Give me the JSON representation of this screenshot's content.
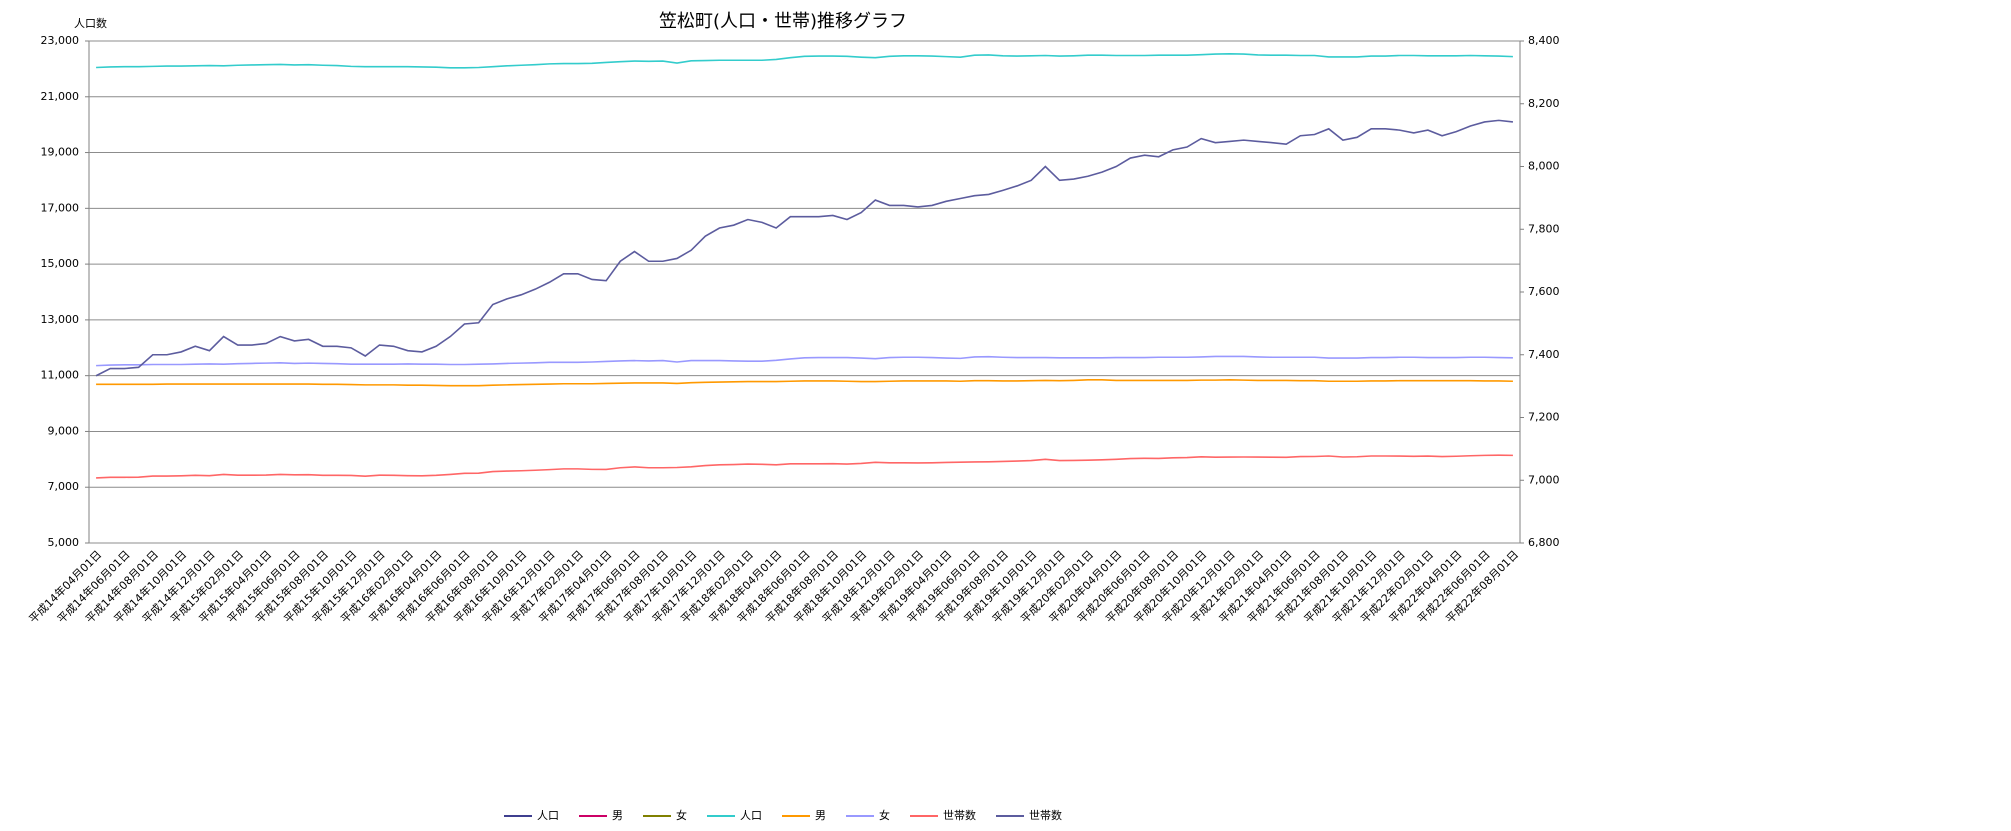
{
  "chart_data": {
    "type": "line",
    "title": "笠松町(人口・世帯)推移グラフ",
    "y_label": "人口数",
    "grid": true,
    "legend": "bottom",
    "ylim": [
      5000,
      23000
    ],
    "yticks": [
      {
        "value": 5000,
        "label": "5,000"
      },
      {
        "value": 7000,
        "label": "7,000"
      },
      {
        "value": 9000,
        "label": "9,000"
      },
      {
        "value": 11000,
        "label": "11,000"
      },
      {
        "value": 13000,
        "label": "13,000"
      },
      {
        "value": 15000,
        "label": "15,000"
      },
      {
        "value": 17000,
        "label": "17,000"
      },
      {
        "value": 19000,
        "label": "19,000"
      },
      {
        "value": 21000,
        "label": "21,000"
      },
      {
        "value": 23000,
        "label": "23,000"
      }
    ],
    "y2lim": [
      6800,
      8400
    ],
    "y2ticks": [
      {
        "value": 6800,
        "label": "6,800"
      },
      {
        "value": 7000,
        "label": "7,000"
      },
      {
        "value": 7200,
        "label": "7,200"
      },
      {
        "value": 7400,
        "label": "7,400"
      },
      {
        "value": 7600,
        "label": "7,600"
      },
      {
        "value": 7800,
        "label": "7,800"
      },
      {
        "value": 8000,
        "label": "8,000"
      },
      {
        "value": 8200,
        "label": "8,200"
      },
      {
        "value": 8400,
        "label": "8,400"
      }
    ],
    "categories": [
      "平成14年04月01日",
      null,
      "平成14年06月01日",
      null,
      "平成14年08月01日",
      null,
      "平成14年10月01日",
      null,
      "平成14年12月01日",
      null,
      "平成15年02月01日",
      null,
      "平成15年04月01日",
      null,
      "平成15年06月01日",
      null,
      "平成15年08月01日",
      null,
      "平成15年10月01日",
      null,
      "平成15年12月01日",
      null,
      "平成16年02月01日",
      null,
      "平成16年04月01日",
      null,
      "平成16年06月01日",
      null,
      "平成16年08月01日",
      null,
      "平成16年10月01日",
      null,
      "平成16年12月01日",
      null,
      "平成17年02月01日",
      null,
      "平成17年04月01日",
      null,
      "平成17年06月01日",
      null,
      "平成17年08月01日",
      null,
      "平成17年10月01日",
      null,
      "平成17年12月01日",
      null,
      "平成18年02月01日",
      null,
      "平成18年04月01日",
      null,
      "平成18年06月01日",
      null,
      "平成18年08月01日",
      null,
      "平成18年10月01日",
      null,
      "平成18年12月01日",
      null,
      "平成19年02月01日",
      null,
      "平成19年04月01日",
      null,
      "平成19年06月01日",
      null,
      "平成19年08月01日",
      null,
      "平成19年10月01日",
      null,
      "平成19年12月01日",
      null,
      "平成20年02月01日",
      null,
      "平成20年04月01日",
      null,
      "平成20年06月01日",
      null,
      "平成20年08月01日",
      null,
      "平成20年10月01日",
      null,
      "平成20年12月01日",
      null,
      "平成21年02月01日",
      null,
      "平成21年04月01日",
      null,
      "平成21年06月01日",
      null,
      "平成21年08月01日",
      null,
      "平成21年10月01日",
      null,
      "平成21年12月01日",
      null,
      "平成22年02月01日",
      null,
      "平成22年04月01日",
      null,
      "平成22年06月01日",
      null,
      "平成22年08月01日"
    ],
    "series": [
      {
        "name": "人口",
        "color": "#3f3f8f",
        "values": [
          null,
          null,
          null,
          null,
          null,
          null,
          null,
          null,
          null,
          null,
          null,
          null,
          null,
          null,
          null,
          null,
          null,
          null,
          null,
          null,
          null,
          null,
          null,
          null,
          null,
          null,
          null,
          null,
          null,
          null,
          null,
          null,
          null,
          null,
          null,
          null,
          null,
          null,
          null,
          null,
          null,
          null,
          null,
          null,
          null,
          null,
          null,
          null,
          null,
          null,
          null,
          null,
          null,
          null,
          null,
          null,
          null,
          null,
          null,
          null,
          null,
          null,
          null,
          null,
          null,
          null,
          null,
          null,
          null,
          null,
          null,
          null,
          null,
          null,
          null,
          null,
          null,
          null,
          null,
          null,
          null,
          null,
          null,
          null,
          null,
          null,
          null,
          null,
          null,
          null,
          null,
          null,
          null,
          null,
          null,
          null,
          null,
          null,
          null,
          null,
          null
        ]
      },
      {
        "name": "男",
        "color": "#cc0066",
        "values": [
          null,
          null,
          null,
          null,
          null,
          null,
          null,
          null,
          null,
          null,
          null,
          null,
          null,
          null,
          null,
          null,
          null,
          null,
          null,
          null,
          null,
          null,
          null,
          null,
          null,
          null,
          null,
          null,
          null,
          null,
          null,
          null,
          null,
          null,
          null,
          null,
          null,
          null,
          null,
          null,
          null,
          null,
          null,
          null,
          null,
          null,
          null,
          null,
          null,
          null,
          null,
          null,
          null,
          null,
          null,
          null,
          null,
          null,
          null,
          null,
          null,
          null,
          null,
          null,
          null,
          null,
          null,
          null,
          null,
          null,
          null,
          null,
          null,
          null,
          null,
          null,
          null,
          null,
          null,
          null,
          null,
          null,
          null,
          null,
          null,
          null,
          null,
          null,
          null,
          null,
          null,
          null,
          null,
          null,
          null,
          null,
          null,
          null,
          null,
          null,
          null
        ]
      },
      {
        "name": "女",
        "color": "#808000",
        "values": [
          null,
          null,
          null,
          null,
          null,
          null,
          null,
          null,
          null,
          null,
          null,
          null,
          null,
          null,
          null,
          null,
          null,
          null,
          null,
          null,
          null,
          null,
          null,
          null,
          null,
          null,
          null,
          null,
          null,
          null,
          null,
          null,
          null,
          null,
          null,
          null,
          null,
          null,
          null,
          null,
          null,
          null,
          null,
          null,
          null,
          null,
          null,
          null,
          null,
          null,
          null,
          null,
          null,
          null,
          null,
          null,
          null,
          null,
          null,
          null,
          null,
          null,
          null,
          null,
          null,
          null,
          null,
          null,
          null,
          null,
          null,
          null,
          null,
          null,
          null,
          null,
          null,
          null,
          null,
          null,
          null,
          null,
          null,
          null,
          null,
          null,
          null,
          null,
          null,
          null,
          null,
          null,
          null,
          null,
          null,
          null,
          null,
          null,
          null,
          null,
          null
        ]
      },
      {
        "name": "人口",
        "color": "#33cccc",
        "values": [
          22050,
          22070,
          22080,
          22080,
          22090,
          22100,
          22100,
          22110,
          22120,
          22110,
          22130,
          22140,
          22150,
          22160,
          22140,
          22150,
          22130,
          22120,
          22090,
          22080,
          22080,
          22080,
          22080,
          22070,
          22060,
          22040,
          22040,
          22050,
          22080,
          22110,
          22130,
          22150,
          22180,
          22190,
          22190,
          22200,
          22230,
          22260,
          22280,
          22270,
          22280,
          22210,
          22290,
          22300,
          22310,
          22310,
          22310,
          22310,
          22340,
          22400,
          22450,
          22460,
          22460,
          22450,
          22420,
          22400,
          22450,
          22470,
          22470,
          22460,
          22440,
          22420,
          22490,
          22500,
          22470,
          22460,
          22470,
          22480,
          22460,
          22470,
          22490,
          22490,
          22480,
          22480,
          22480,
          22490,
          22490,
          22490,
          22510,
          22530,
          22540,
          22530,
          22500,
          22490,
          22490,
          22480,
          22480,
          22430,
          22430,
          22430,
          22460,
          22460,
          22480,
          22480,
          22470,
          22470,
          22470,
          22480,
          22470,
          22460,
          22440
        ]
      },
      {
        "name": "男",
        "color": "#ff9900",
        "values": [
          10690,
          10690,
          10690,
          10690,
          10690,
          10700,
          10700,
          10700,
          10700,
          10700,
          10700,
          10700,
          10700,
          10700,
          10700,
          10700,
          10690,
          10690,
          10680,
          10670,
          10670,
          10670,
          10660,
          10660,
          10650,
          10640,
          10640,
          10640,
          10660,
          10670,
          10680,
          10690,
          10700,
          10710,
          10710,
          10710,
          10720,
          10730,
          10740,
          10740,
          10740,
          10720,
          10750,
          10760,
          10770,
          10780,
          10790,
          10790,
          10790,
          10800,
          10810,
          10810,
          10810,
          10800,
          10790,
          10790,
          10800,
          10810,
          10810,
          10810,
          10810,
          10800,
          10820,
          10820,
          10810,
          10810,
          10820,
          10830,
          10820,
          10830,
          10850,
          10850,
          10830,
          10830,
          10830,
          10830,
          10830,
          10830,
          10840,
          10840,
          10850,
          10840,
          10830,
          10830,
          10830,
          10820,
          10820,
          10800,
          10800,
          10800,
          10810,
          10810,
          10820,
          10820,
          10820,
          10820,
          10820,
          10820,
          10810,
          10810,
          10800
        ]
      },
      {
        "name": "女",
        "color": "#9999ff",
        "values": [
          11360,
          11380,
          11390,
          11390,
          11400,
          11400,
          11400,
          11410,
          11420,
          11410,
          11430,
          11440,
          11450,
          11460,
          11440,
          11450,
          11440,
          11430,
          11410,
          11410,
          11410,
          11410,
          11420,
          11410,
          11410,
          11400,
          11400,
          11410,
          11420,
          11440,
          11450,
          11460,
          11480,
          11480,
          11480,
          11490,
          11510,
          11530,
          11540,
          11530,
          11540,
          11490,
          11540,
          11540,
          11540,
          11530,
          11520,
          11520,
          11550,
          11600,
          11640,
          11650,
          11650,
          11650,
          11630,
          11610,
          11650,
          11660,
          11660,
          11650,
          11630,
          11620,
          11670,
          11680,
          11660,
          11650,
          11650,
          11650,
          11640,
          11640,
          11640,
          11640,
          11650,
          11650,
          11650,
          11660,
          11660,
          11660,
          11670,
          11690,
          11690,
          11690,
          11670,
          11660,
          11660,
          11660,
          11660,
          11630,
          11630,
          11630,
          11650,
          11650,
          11660,
          11660,
          11650,
          11650,
          11650,
          11660,
          11660,
          11650,
          11640
        ]
      },
      {
        "name": "世帯数",
        "color": "#ff6666",
        "values": [
          7333,
          7356,
          7356,
          7360,
          7400,
          7400,
          7409,
          7427,
          7413,
          7458,
          7431,
          7431,
          7436,
          7458,
          7444,
          7449,
          7427,
          7427,
          7422,
          7396,
          7431,
          7427,
          7413,
          7409,
          7427,
          7458,
          7498,
          7502,
          7560,
          7578,
          7591,
          7609,
          7631,
          7658,
          7658,
          7640,
          7636,
          7698,
          7729,
          7698,
          7698,
          7707,
          7733,
          7778,
          7804,
          7813,
          7831,
          7822,
          7804,
          7840,
          7840,
          7840,
          7844,
          7831,
          7853,
          7893,
          7876,
          7876,
          7871,
          7876,
          7889,
          7898,
          7907,
          7911,
          7924,
          7938,
          7956,
          8000,
          7956,
          7960,
          7969,
          7982,
          8000,
          8027,
          8036,
          8031,
          8053,
          8062,
          8089,
          8076,
          8080,
          8084,
          8080,
          8076,
          8071,
          8098,
          8102,
          8120,
          8084,
          8093,
          8120,
          8120,
          8116,
          8107,
          8116,
          8098,
          8111,
          8129,
          8142,
          8147,
          8142
        ]
      },
      {
        "name": "世帯数",
        "color": "#5c5c9e",
        "axis": "y2",
        "values": [
          7333,
          7356,
          7356,
          7360,
          7400,
          7400,
          7409,
          7427,
          7413,
          7458,
          7431,
          7431,
          7436,
          7458,
          7444,
          7449,
          7427,
          7427,
          7422,
          7396,
          7431,
          7427,
          7413,
          7409,
          7427,
          7458,
          7498,
          7502,
          7560,
          7578,
          7591,
          7609,
          7631,
          7658,
          7658,
          7640,
          7636,
          7698,
          7729,
          7698,
          7698,
          7707,
          7733,
          7778,
          7804,
          7813,
          7831,
          7822,
          7804,
          7840,
          7840,
          7840,
          7844,
          7831,
          7853,
          7893,
          7876,
          7876,
          7871,
          7876,
          7889,
          7898,
          7907,
          7911,
          7924,
          7938,
          7956,
          8000,
          7956,
          7960,
          7969,
          7982,
          8000,
          8027,
          8036,
          8031,
          8053,
          8062,
          8089,
          8076,
          8080,
          8084,
          8080,
          8076,
          8071,
          8098,
          8102,
          8120,
          8084,
          8093,
          8120,
          8120,
          8116,
          8107,
          8116,
          8098,
          8111,
          8129,
          8142,
          8147,
          8142
        ]
      }
    ]
  }
}
